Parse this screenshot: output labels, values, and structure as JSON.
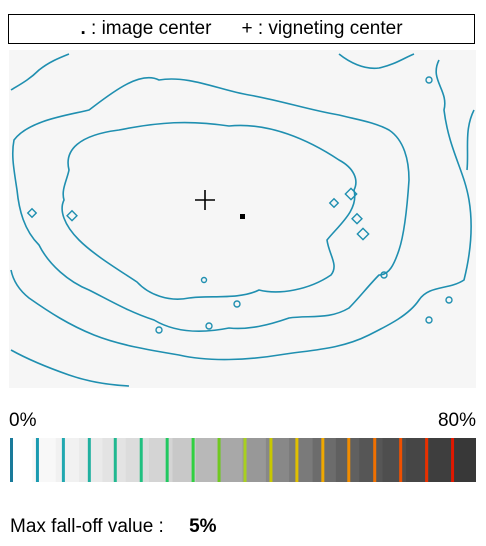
{
  "legend": {
    "image_center_symbol": ".",
    "image_center_text": ": image center",
    "vignetting_center_symbol": "+",
    "vignetting_center_text": ": vigneting center"
  },
  "scale": {
    "min_label": "0%",
    "max_label": "80%",
    "colors": [
      "#ffffff",
      "#f8f8f8",
      "#f1f1f1",
      "#eaeaea",
      "#e3e3e3",
      "#dcdcdc",
      "#d4d4d4",
      "#c8c8c8",
      "#b8b8b8",
      "#a8a8a8",
      "#989898",
      "#888888",
      "#7a7a7a",
      "#6c6c6c",
      "#606060",
      "#565656",
      "#4e4e4e",
      "#464646",
      "#3e3e3e",
      "#383838"
    ],
    "lines": [
      "#1a7a9a",
      "#1a9ab0",
      "#20a8b0",
      "#20b0a0",
      "#20b890",
      "#20c080",
      "#20c860",
      "#30d040",
      "#70c820",
      "#a8d020",
      "#c8c800",
      "#e0c000",
      "#f0a800",
      "#f08c00",
      "#f07000",
      "#f05000",
      "#e83000",
      "#e01800"
    ]
  },
  "footer": {
    "label": "Max fall-off value :",
    "value": "5%"
  },
  "colors": {
    "contour": "#1f8fb0",
    "background": "#f6f6f6"
  }
}
